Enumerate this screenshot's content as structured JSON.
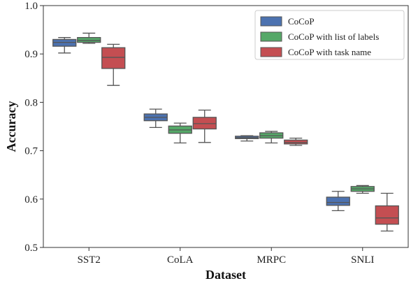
{
  "chart_data": {
    "type": "boxplot",
    "xlabel": "Dataset",
    "ylabel": "Accuracy",
    "ylim": [
      0.5,
      1.0
    ],
    "yticks": [
      "0.5",
      "0.6",
      "0.7",
      "0.8",
      "0.9",
      "1.0"
    ],
    "categories": [
      "SST2",
      "CoLA",
      "MRPC",
      "SNLI"
    ],
    "legend_position": "top-right",
    "grid": false,
    "series": [
      {
        "name": "CoCoP",
        "color": "#4c72b0",
        "boxes": [
          {
            "min": 0.902,
            "q1": 0.916,
            "median": 0.924,
            "q3": 0.93,
            "max": 0.934
          },
          {
            "min": 0.748,
            "q1": 0.762,
            "median": 0.769,
            "q3": 0.776,
            "max": 0.786
          },
          {
            "min": 0.72,
            "q1": 0.725,
            "median": 0.727,
            "q3": 0.73,
            "max": 0.731
          },
          {
            "min": 0.576,
            "q1": 0.587,
            "median": 0.593,
            "q3": 0.604,
            "max": 0.616
          }
        ]
      },
      {
        "name": "CoCoP with list of labels",
        "color": "#55a868",
        "boxes": [
          {
            "min": 0.922,
            "q1": 0.924,
            "median": 0.928,
            "q3": 0.934,
            "max": 0.943
          },
          {
            "min": 0.716,
            "q1": 0.736,
            "median": 0.743,
            "q3": 0.751,
            "max": 0.757
          },
          {
            "min": 0.716,
            "q1": 0.726,
            "median": 0.731,
            "q3": 0.737,
            "max": 0.74
          },
          {
            "min": 0.612,
            "q1": 0.616,
            "median": 0.621,
            "q3": 0.626,
            "max": 0.628
          }
        ]
      },
      {
        "name": "CoCoP with task name",
        "color": "#c44e52",
        "boxes": [
          {
            "min": 0.835,
            "q1": 0.87,
            "median": 0.893,
            "q3": 0.913,
            "max": 0.92
          },
          {
            "min": 0.717,
            "q1": 0.745,
            "median": 0.756,
            "q3": 0.769,
            "max": 0.784
          },
          {
            "min": 0.711,
            "q1": 0.714,
            "median": 0.717,
            "q3": 0.722,
            "max": 0.726
          },
          {
            "min": 0.534,
            "q1": 0.548,
            "median": 0.561,
            "q3": 0.586,
            "max": 0.612
          }
        ]
      }
    ]
  }
}
